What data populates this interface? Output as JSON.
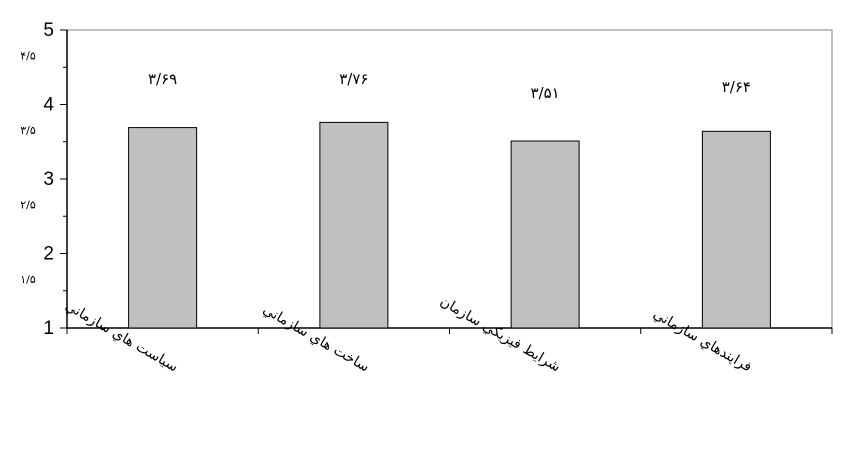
{
  "chart_data": {
    "type": "bar",
    "categories": [
      "سياست هاي سازماني",
      "ساخت هاي سازماني",
      "شرايط فيزيكي سازمان",
      "فرايندهاي سازماني"
    ],
    "values": [
      3.69,
      3.76,
      3.51,
      3.64
    ],
    "data_labels": [
      "۳/۶۹",
      "۳/۷۶",
      "۳/۵۱",
      "۳/۶۴"
    ],
    "ylim": [
      1,
      5
    ],
    "y_ticks_major": [
      "1",
      "2",
      "3",
      "4",
      "5"
    ],
    "y_ticks_half": [
      {
        "value": 1.5,
        "label": "۱/۵"
      },
      {
        "value": 2.5,
        "label": "۲/۵"
      },
      {
        "value": 3.5,
        "label": "۳/۵"
      },
      {
        "value": 4.5,
        "label": "۴/۵"
      }
    ],
    "title": "",
    "xlabel": "",
    "ylabel": "",
    "grid": false,
    "colors": {
      "bar_fill": "#c0c0c0",
      "bar_stroke": "#000000",
      "plot_border": "#808080",
      "axis": "#000000"
    }
  }
}
